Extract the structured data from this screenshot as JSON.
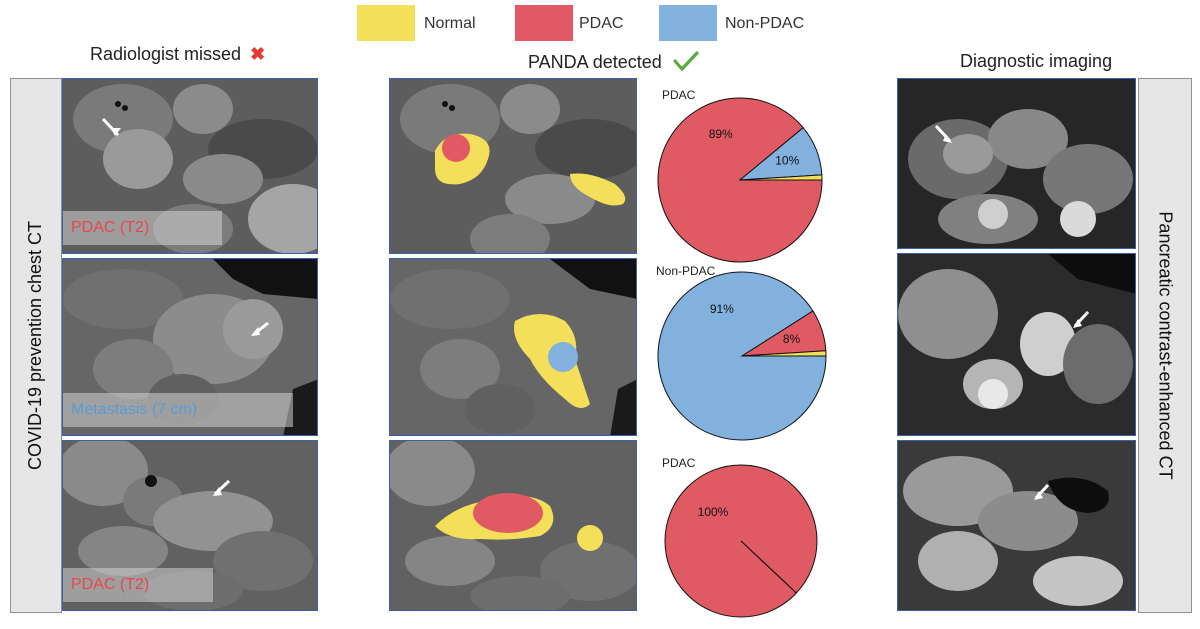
{
  "legend": [
    {
      "label": "Normal",
      "color": "#f4df5a"
    },
    {
      "label": "PDAC",
      "color": "#e05a63"
    },
    {
      "label": "Non-PDAC",
      "color": "#82b1de"
    }
  ],
  "headings": {
    "radiologist": "Radiologist missed",
    "panda": "PANDA detected",
    "diagnostic": "Diagnostic imaging"
  },
  "side_labels": {
    "left": "COVID-19 prevention chest CT",
    "right": "Pancreatic contrast-enhanced CT"
  },
  "captions": [
    {
      "text": "PDAC (T2)",
      "color": "#e8474f"
    },
    {
      "text": "Metastasis (7 cm)",
      "color": "#5a9ad6"
    },
    {
      "text": "PDAC (T2)",
      "color": "#e8474f"
    }
  ],
  "colors": {
    "normal": "#f4df5a",
    "pdac": "#e05a63",
    "non_pdac": "#82b1de",
    "panel_border": "#3d5fa8",
    "check": "#5aab3e",
    "cross": "#e53935"
  },
  "chart_data": [
    {
      "type": "pie",
      "title": "PDAC",
      "slices": [
        {
          "label": "PDAC",
          "value": 89,
          "text": "89%",
          "color": "#e05a63"
        },
        {
          "label": "Non-PDAC",
          "value": 10,
          "text": "10%",
          "color": "#82b1de"
        },
        {
          "label": "Normal",
          "value": 1,
          "text": "",
          "color": "#f4df5a"
        }
      ]
    },
    {
      "type": "pie",
      "title": "Non-PDAC",
      "slices": [
        {
          "label": "Non-PDAC",
          "value": 91,
          "text": "91%",
          "color": "#82b1de"
        },
        {
          "label": "PDAC",
          "value": 8,
          "text": "8%",
          "color": "#e05a63"
        },
        {
          "label": "Normal",
          "value": 1,
          "text": "",
          "color": "#f4df5a"
        }
      ]
    },
    {
      "type": "pie",
      "title": "PDAC",
      "slices": [
        {
          "label": "PDAC",
          "value": 100,
          "text": "100%",
          "color": "#e05a63"
        }
      ]
    }
  ]
}
